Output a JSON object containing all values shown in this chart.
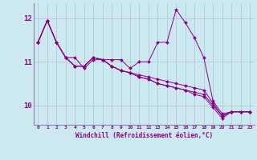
{
  "background_color": "#cce8f0",
  "line_color": "#880088",
  "x_label": "Windchill (Refroidissement éolien,°C)",
  "yticks": [
    10,
    11,
    12
  ],
  "xlim": [
    -0.5,
    23.5
  ],
  "ylim": [
    9.55,
    12.35
  ],
  "series": [
    [
      11.45,
      11.95,
      11.45,
      11.1,
      11.1,
      10.85,
      11.05,
      11.05,
      11.05,
      11.05,
      10.85,
      11.0,
      11.0,
      11.45,
      11.45,
      12.2,
      11.9,
      11.55,
      11.1,
      10.1,
      9.8,
      9.85,
      9.85,
      9.85
    ],
    [
      11.45,
      11.95,
      11.45,
      11.1,
      10.9,
      10.9,
      11.1,
      11.05,
      10.9,
      10.8,
      10.75,
      10.7,
      10.65,
      10.6,
      10.55,
      10.5,
      10.45,
      10.4,
      10.35,
      10.05,
      9.75,
      9.85,
      9.85,
      9.85
    ],
    [
      11.45,
      11.95,
      11.45,
      11.1,
      10.9,
      10.9,
      11.1,
      11.05,
      10.9,
      10.8,
      10.75,
      10.65,
      10.6,
      10.5,
      10.45,
      10.4,
      10.35,
      10.3,
      10.25,
      10.0,
      9.75,
      9.85,
      9.85,
      9.85
    ],
    [
      11.45,
      11.95,
      11.45,
      11.1,
      10.9,
      10.9,
      11.1,
      11.05,
      10.9,
      10.8,
      10.75,
      10.65,
      10.6,
      10.5,
      10.45,
      10.4,
      10.35,
      10.25,
      10.2,
      9.95,
      9.7,
      9.85,
      9.85,
      9.85
    ]
  ]
}
